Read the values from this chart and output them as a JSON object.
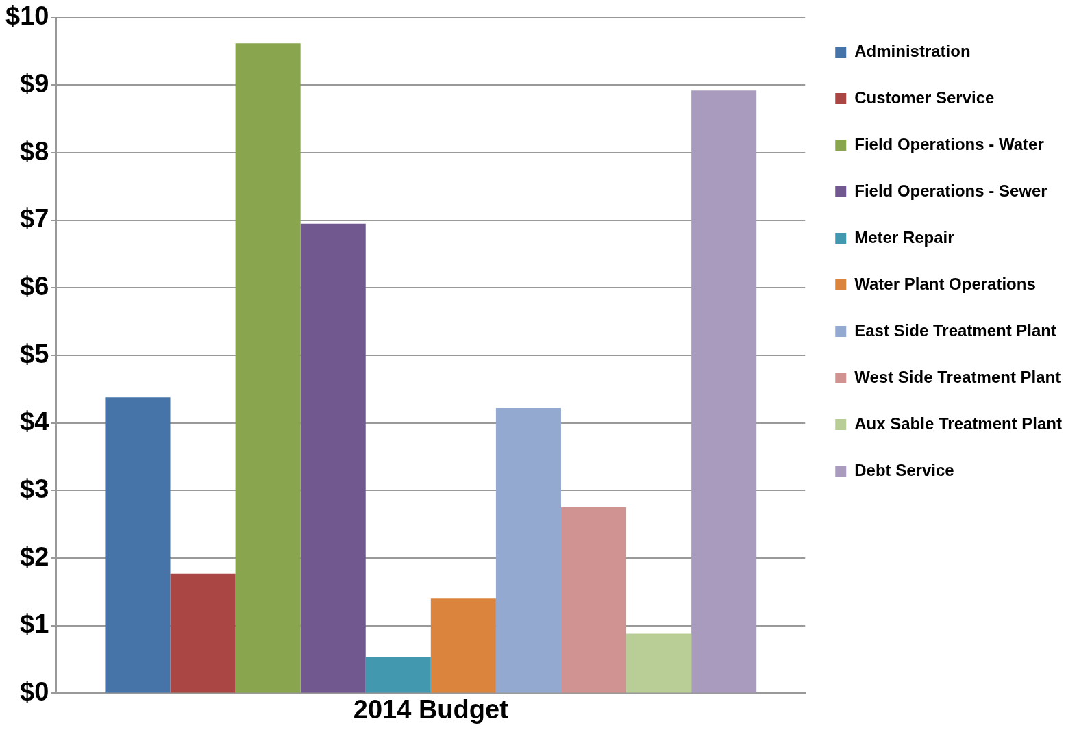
{
  "chart_data": {
    "type": "bar",
    "categories": [
      "2014 Budget"
    ],
    "series": [
      {
        "name": "Administration",
        "color": "#4674a8",
        "values": [
          4.38
        ]
      },
      {
        "name": "Customer Service",
        "color": "#aa4644",
        "values": [
          1.77
        ]
      },
      {
        "name": "Field Operations - Water",
        "color": "#89a54e",
        "values": [
          9.62
        ]
      },
      {
        "name": "Field Operations - Sewer",
        "color": "#71588f",
        "values": [
          6.95
        ]
      },
      {
        "name": "Meter Repair",
        "color": "#4198af",
        "values": [
          0.53
        ]
      },
      {
        "name": "Water Plant Operations",
        "color": "#db843d",
        "values": [
          1.4
        ]
      },
      {
        "name": "East Side Treatment Plant",
        "color": "#93a9cf",
        "values": [
          4.22
        ]
      },
      {
        "name": "West Side Treatment Plant",
        "color": "#d19392",
        "values": [
          2.75
        ]
      },
      {
        "name": "Aux Sable Treatment Plant",
        "color": "#b9cd96",
        "values": [
          0.88
        ]
      },
      {
        "name": "Debt Service",
        "color": "#a99bbd",
        "values": [
          8.92
        ]
      }
    ],
    "ylim": [
      0,
      10
    ],
    "yticks": [
      {
        "value": 0,
        "label": "$0"
      },
      {
        "value": 1,
        "label": "$1"
      },
      {
        "value": 2,
        "label": "$2"
      },
      {
        "value": 3,
        "label": "$3"
      },
      {
        "value": 4,
        "label": "$4"
      },
      {
        "value": 5,
        "label": "$5"
      },
      {
        "value": 6,
        "label": "$6"
      },
      {
        "value": 7,
        "label": "$7"
      },
      {
        "value": 8,
        "label": "$8"
      },
      {
        "value": 9,
        "label": "$9"
      },
      {
        "value": 10,
        "label": "$10"
      }
    ],
    "grid": "y",
    "legend": "right"
  }
}
